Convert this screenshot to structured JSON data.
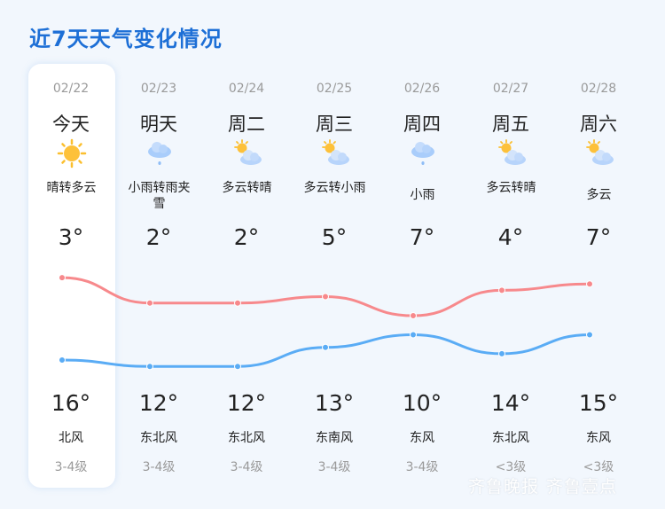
{
  "title": "近7天天气变化情况",
  "colors": {
    "accent": "#1d6fd6",
    "high_line": "#f7898c",
    "low_line": "#5aacf5",
    "background": "#f2f7fd"
  },
  "days": [
    {
      "date": "02/22",
      "label": "今天",
      "icon": "sunny-icon",
      "desc": "晴转多云",
      "low": "3°",
      "high": "16°",
      "wind": "北风",
      "level": "3-4级"
    },
    {
      "date": "02/23",
      "label": "明天",
      "icon": "light-rain-icon",
      "desc": "小雨转雨夹雪",
      "low": "2°",
      "high": "12°",
      "wind": "东北风",
      "level": "3-4级"
    },
    {
      "date": "02/24",
      "label": "周二",
      "icon": "partly-cloudy-icon",
      "desc": "多云转晴",
      "low": "2°",
      "high": "12°",
      "wind": "东北风",
      "level": "3-4级"
    },
    {
      "date": "02/25",
      "label": "周三",
      "icon": "partly-cloudy-icon",
      "desc": "多云转小雨",
      "low": "5°",
      "high": "13°",
      "wind": "东南风",
      "level": "3-4级"
    },
    {
      "date": "02/26",
      "label": "周四",
      "icon": "light-rain-icon",
      "desc": "小雨",
      "low": "7°",
      "high": "10°",
      "wind": "东风",
      "level": "3-4级"
    },
    {
      "date": "02/27",
      "label": "周五",
      "icon": "partly-cloudy-icon",
      "desc": "多云转晴",
      "low": "4°",
      "high": "14°",
      "wind": "东北风",
      "level": "<3级"
    },
    {
      "date": "02/28",
      "label": "周六",
      "icon": "partly-cloudy-icon",
      "desc": "多云",
      "low": "7°",
      "high": "15°",
      "wind": "东风",
      "level": "<3级"
    }
  ],
  "chart_data": {
    "type": "line",
    "categories": [
      "02/22",
      "02/23",
      "02/24",
      "02/25",
      "02/26",
      "02/27",
      "02/28"
    ],
    "series": [
      {
        "values": [
          16,
          12,
          12,
          13,
          10,
          14,
          15
        ],
        "color": "#f7898c"
      },
      {
        "values": [
          3,
          2,
          2,
          5,
          7,
          4,
          7
        ],
        "color": "#5aacf5"
      }
    ]
  },
  "watermark": {
    "left": "齐鲁晚报",
    "right": "齐鲁壹点"
  }
}
